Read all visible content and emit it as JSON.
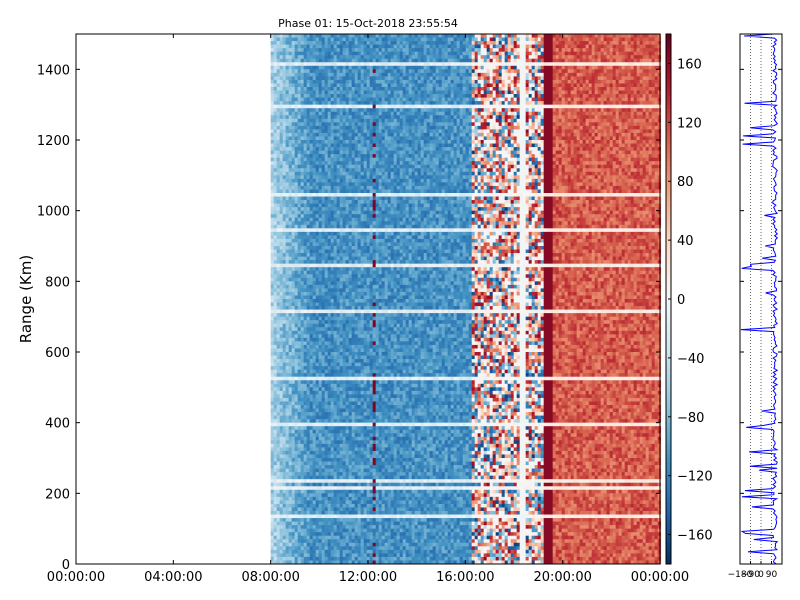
{
  "chart_data": [
    {
      "type": "heatmap",
      "title": "Phase 01: 15-Oct-2018 23:55:54",
      "ylabel": "Range (Km)",
      "xlabel": "",
      "x_ticks": [
        "00:00:00",
        "04:00:00",
        "08:00:00",
        "12:00:00",
        "16:00:00",
        "20:00:00",
        "00:00:00"
      ],
      "y_ticks": [
        "0",
        "200",
        "400",
        "600",
        "800",
        "1000",
        "1200",
        "1400"
      ],
      "xlim_hours": [
        0,
        24
      ],
      "ylim": [
        0,
        1500
      ],
      "data_start_hour": 8,
      "phase_regimes": [
        {
          "from_hour": 8,
          "to_hour": 16.2,
          "typical_phase": -110
        },
        {
          "from_hour": 16.2,
          "to_hour": 19.2,
          "typical_phase": "mixed"
        },
        {
          "from_hour": 19.2,
          "to_hour": 24,
          "typical_phase": 120
        }
      ],
      "colorbar": {
        "colormap": "RdBu_r",
        "vmin": -180,
        "vmax": 180,
        "ticks": [
          "160",
          "120",
          "80",
          "40",
          "0",
          "−40",
          "−80",
          "−120",
          "−160"
        ]
      }
    },
    {
      "type": "line",
      "x_ticks": [
        "−180",
        "−90",
        "0",
        "90"
      ],
      "xlim": [
        -180,
        180
      ],
      "ylim": [
        0,
        1500
      ],
      "series_color": "#0000ff",
      "grid": "vertical dotted"
    }
  ]
}
